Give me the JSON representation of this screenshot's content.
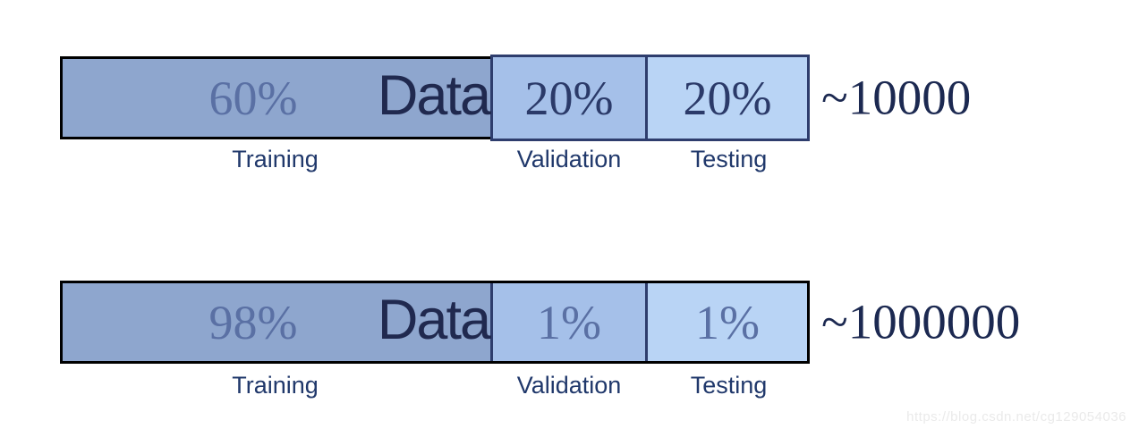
{
  "colors": {
    "page_bg": "#FFFFFF",
    "training_fill": "#8EA6CE",
    "validation_fill": "#A5C0E9",
    "testing_fill": "#B9D4F5",
    "black_border": "#000000",
    "navy_border": "#2E3D6D",
    "percent_muted": "#5A70A4",
    "percent_dark": "#2B3A69",
    "data_word_color": "#20294F",
    "count_color": "#1C2951",
    "label_color": "#20386B",
    "watermark_color": "#EAEAEA"
  },
  "bars": [
    {
      "name": "small-dataset-split",
      "data_word": "Data",
      "count": "~10000",
      "segments": [
        {
          "key": "training",
          "percent": "60%",
          "label": "Training"
        },
        {
          "key": "validation",
          "percent": "20%",
          "label": "Validation"
        },
        {
          "key": "testing",
          "percent": "20%",
          "label": "Testing"
        }
      ]
    },
    {
      "name": "large-dataset-split",
      "data_word": "Data",
      "count": "~1000000",
      "segments": [
        {
          "key": "training",
          "percent": "98%",
          "label": "Training"
        },
        {
          "key": "validation",
          "percent": "1%",
          "label": "Validation"
        },
        {
          "key": "testing",
          "percent": "1%",
          "label": "Testing"
        }
      ]
    }
  ],
  "watermark": {
    "text": "https://blog.csdn.net/cg129054036"
  }
}
